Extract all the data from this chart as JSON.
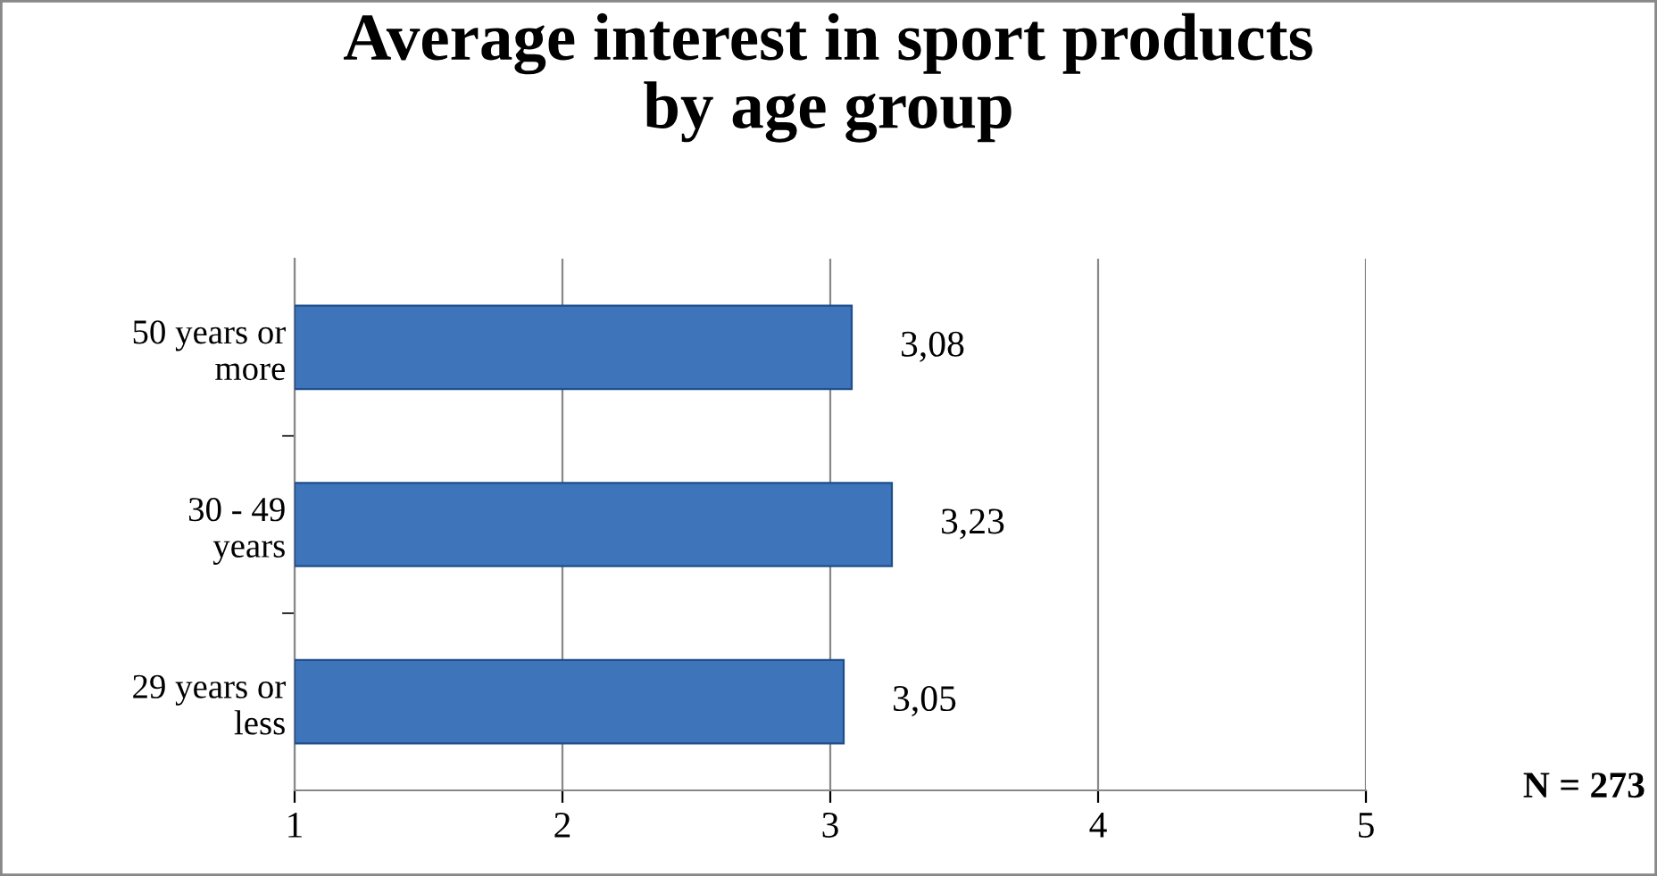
{
  "chart_data": {
    "type": "bar",
    "orientation": "horizontal",
    "title": "Average interest in sport products\nby age group",
    "categories": [
      "50 years or\nmore",
      "30 - 49\nyears",
      "29 years or\nless"
    ],
    "values": [
      3.08,
      3.23,
      3.05
    ],
    "color": "#3d74ba",
    "value_labels": [
      "3,08",
      "3,23",
      "3,05"
    ],
    "xlim": [
      1,
      5
    ],
    "xticks": [
      1,
      2,
      3,
      4,
      5
    ],
    "grid": "x",
    "annotations": [
      "N = 273"
    ]
  }
}
